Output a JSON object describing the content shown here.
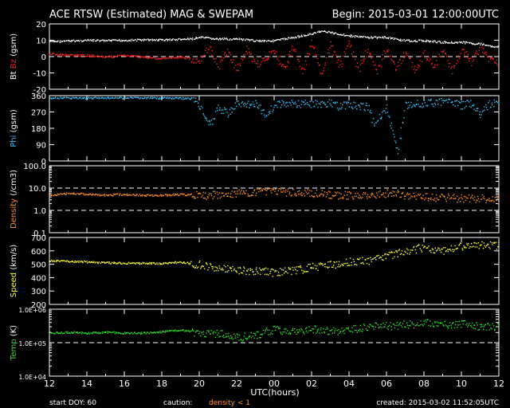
{
  "header": {
    "title": "ACE RTSW (Estimated) MAG & SWEPAM",
    "begin": "Begin: 2015-03-01 12:00:00UTC"
  },
  "footer": {
    "start_doy": "start DOY:  60",
    "caution_label": "caution:",
    "caution_value": "density < 1",
    "created": "created: 2015-03-02 11:52:05UTC"
  },
  "colors": {
    "bt": "#ffffff",
    "bz": "#ff2020",
    "phi": "#30c0ff",
    "density": "#ff9020",
    "speed": "#ffff30",
    "temp": "#30e030",
    "grid": "#ffffff",
    "background": "#000000"
  },
  "chart_data": [
    {
      "type": "scatter",
      "name": "bt-bz",
      "ylabel_parts": [
        "Bt",
        "Bz",
        "(gsm)"
      ],
      "ylim": [
        -20,
        20
      ],
      "yticks": [
        "20",
        "10",
        "0",
        "-10",
        "-20"
      ],
      "dashed": [
        0
      ],
      "series": [
        {
          "name": "Bt",
          "color": "#ffffff",
          "points": [
            [
              12,
              9.5
            ],
            [
              13,
              9.8
            ],
            [
              14,
              10.2
            ],
            [
              15,
              10.0
            ],
            [
              16,
              10.3
            ],
            [
              17,
              10.5
            ],
            [
              18,
              10.5
            ],
            [
              19,
              10.8
            ],
            [
              19.5,
              11
            ],
            [
              20,
              12
            ],
            [
              21,
              11
            ],
            [
              22,
              11
            ],
            [
              23,
              10
            ],
            [
              24,
              10
            ],
            [
              25,
              12
            ],
            [
              26,
              14
            ],
            [
              26.5,
              16
            ],
            [
              27,
              15
            ],
            [
              28,
              13
            ],
            [
              29,
              12
            ],
            [
              30,
              12
            ],
            [
              31,
              10
            ],
            [
              32,
              10
            ],
            [
              33,
              9
            ],
            [
              34,
              9
            ],
            [
              35,
              8
            ],
            [
              36,
              6
            ]
          ]
        },
        {
          "name": "Bz",
          "color": "#ff2020",
          "points": [
            [
              12,
              2
            ],
            [
              13,
              1
            ],
            [
              14,
              1
            ],
            [
              15,
              0
            ],
            [
              16,
              1
            ],
            [
              17,
              0
            ],
            [
              18,
              -1
            ],
            [
              19,
              0
            ],
            [
              20,
              -2
            ],
            [
              20.5,
              6
            ],
            [
              21,
              -6
            ],
            [
              21.5,
              4
            ],
            [
              22,
              -8
            ],
            [
              22.5,
              5
            ],
            [
              23,
              -5
            ],
            [
              24,
              3
            ],
            [
              24.5,
              -7
            ],
            [
              25,
              6
            ],
            [
              25.5,
              -9
            ],
            [
              26,
              8
            ],
            [
              26.5,
              -10
            ],
            [
              27,
              7
            ],
            [
              27.5,
              -6
            ],
            [
              28,
              9
            ],
            [
              28.5,
              -8
            ],
            [
              29,
              5
            ],
            [
              29.5,
              -9
            ],
            [
              30,
              6
            ],
            [
              30.5,
              -7
            ],
            [
              31,
              3
            ],
            [
              31.5,
              -8
            ],
            [
              32,
              2
            ],
            [
              32.5,
              -6
            ],
            [
              33,
              4
            ],
            [
              33.5,
              -9
            ],
            [
              34,
              5
            ],
            [
              34.5,
              -3
            ],
            [
              35,
              6
            ],
            [
              35.5,
              -2
            ],
            [
              36,
              -4
            ]
          ]
        }
      ]
    },
    {
      "type": "scatter",
      "name": "phi",
      "ylabel_parts": [
        "Phi",
        "(gsm)"
      ],
      "ylim": [
        0,
        360
      ],
      "yticks": [
        "360",
        "270",
        "180",
        "90",
        "0"
      ],
      "dashed": [],
      "series": [
        {
          "name": "Phi",
          "color": "#30c0ff",
          "points": [
            [
              12,
              350
            ],
            [
              14,
              350
            ],
            [
              16,
              350
            ],
            [
              18,
              350
            ],
            [
              19,
              348
            ],
            [
              19.8,
              345
            ],
            [
              20,
              310
            ],
            [
              20.3,
              230
            ],
            [
              20.6,
              200
            ],
            [
              21,
              300
            ],
            [
              21.5,
              260
            ],
            [
              22,
              320
            ],
            [
              22.5,
              310
            ],
            [
              23,
              320
            ],
            [
              23.5,
              260
            ],
            [
              24,
              310
            ],
            [
              25,
              320
            ],
            [
              26,
              315
            ],
            [
              27,
              320
            ],
            [
              27.5,
              300
            ],
            [
              28,
              315
            ],
            [
              29,
              300
            ],
            [
              29.3,
              210
            ],
            [
              30,
              300
            ],
            [
              30.3,
              150
            ],
            [
              30.6,
              50
            ],
            [
              31,
              310
            ],
            [
              32,
              320
            ],
            [
              33,
              330
            ],
            [
              34,
              310
            ],
            [
              34.5,
              320
            ],
            [
              35,
              260
            ],
            [
              35.5,
              320
            ],
            [
              36,
              325
            ]
          ]
        }
      ]
    },
    {
      "type": "scatter",
      "name": "density",
      "ylabel_parts": [
        "Density",
        "(/cm3)"
      ],
      "yscale": "log",
      "ylim": [
        0.1,
        100
      ],
      "yticks": [
        "100.0",
        "10.0",
        "1.0",
        "0.1"
      ],
      "dashed": [
        1,
        10
      ],
      "series": [
        {
          "name": "Density",
          "color": "#ff9020",
          "points": [
            [
              12,
              5
            ],
            [
              13,
              6
            ],
            [
              14,
              5.5
            ],
            [
              15,
              5
            ],
            [
              16,
              5.5
            ],
            [
              17,
              5
            ],
            [
              18,
              5
            ],
            [
              19,
              5.5
            ],
            [
              20,
              5
            ],
            [
              21,
              5
            ],
            [
              22,
              6
            ],
            [
              23,
              6.5
            ],
            [
              24,
              7
            ],
            [
              25,
              6.5
            ],
            [
              26,
              6
            ],
            [
              27,
              5
            ],
            [
              28,
              5
            ],
            [
              29,
              4.5
            ],
            [
              30,
              6
            ],
            [
              31,
              5
            ],
            [
              32,
              4
            ],
            [
              33,
              4
            ],
            [
              34,
              3.5
            ],
            [
              35,
              3.5
            ],
            [
              36,
              3
            ]
          ]
        }
      ]
    },
    {
      "type": "scatter",
      "name": "speed",
      "ylabel_parts": [
        "Speed",
        "(km/s)"
      ],
      "ylim": [
        200,
        700
      ],
      "yticks": [
        "700",
        "600",
        "500",
        "400",
        "300",
        "200"
      ],
      "dashed": [],
      "series": [
        {
          "name": "Speed",
          "color": "#ffff30",
          "points": [
            [
              12,
              530
            ],
            [
              13,
              525
            ],
            [
              14,
              520
            ],
            [
              15,
              515
            ],
            [
              16,
              512
            ],
            [
              17,
              510
            ],
            [
              18,
              510
            ],
            [
              19,
              520
            ],
            [
              20,
              500
            ],
            [
              21,
              470
            ],
            [
              22,
              460
            ],
            [
              23,
              455
            ],
            [
              24,
              440
            ],
            [
              25,
              455
            ],
            [
              26,
              480
            ],
            [
              27,
              500
            ],
            [
              28,
              520
            ],
            [
              29,
              530
            ],
            [
              30,
              560
            ],
            [
              31,
              600
            ],
            [
              32,
              630
            ],
            [
              33,
              600
            ],
            [
              34,
              640
            ],
            [
              35,
              650
            ],
            [
              36,
              640
            ]
          ]
        }
      ]
    },
    {
      "type": "scatter",
      "name": "temp",
      "ylabel_parts": [
        "Temp",
        "(K)"
      ],
      "yscale": "log",
      "ylim": [
        10000,
        1000000
      ],
      "yticks": [
        "1.0E+06",
        "1.0E+05",
        "1.0E+04"
      ],
      "dashed": [
        100000
      ],
      "series": [
        {
          "name": "Temp",
          "color": "#30e030",
          "points": [
            [
              12,
              200000
            ],
            [
              13,
              210000
            ],
            [
              14,
              200000
            ],
            [
              15,
              210000
            ],
            [
              16,
              200000
            ],
            [
              17,
              200000
            ],
            [
              18,
              220000
            ],
            [
              19,
              250000
            ],
            [
              20,
              180000
            ],
            [
              21,
              200000
            ],
            [
              22,
              150000
            ],
            [
              23,
              170000
            ],
            [
              24,
              250000
            ],
            [
              25,
              220000
            ],
            [
              26,
              260000
            ],
            [
              27,
              220000
            ],
            [
              28,
              250000
            ],
            [
              29,
              300000
            ],
            [
              30,
              320000
            ],
            [
              31,
              350000
            ],
            [
              32,
              400000
            ],
            [
              33,
              350000
            ],
            [
              34,
              380000
            ],
            [
              35,
              300000
            ],
            [
              36,
              320000
            ]
          ]
        }
      ]
    }
  ],
  "xaxis": {
    "label": "UTC(hours)",
    "ticks": [
      "12",
      "14",
      "16",
      "18",
      "20",
      "22",
      "00",
      "02",
      "04",
      "06",
      "08",
      "10",
      "12"
    ]
  }
}
